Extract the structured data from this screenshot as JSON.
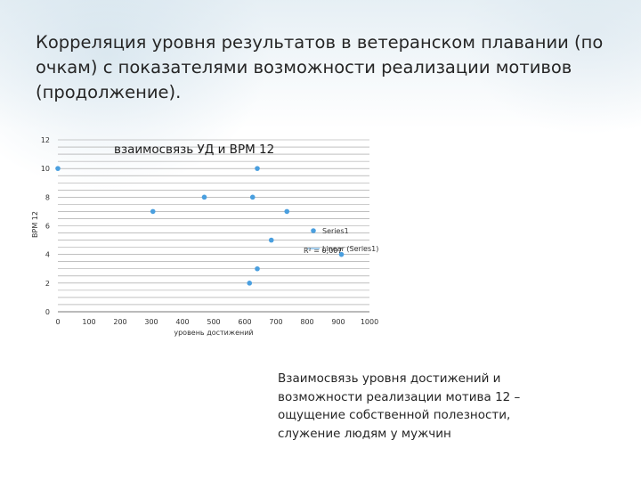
{
  "slide": {
    "title": "Корреляция уровня результатов в ветеранском плавании (по очкам) с показателями возможности реализации мотивов (продолжение).",
    "caption": "Взаимосвязь уровня достижений и возможности реализации мотива 12 – ощущение собственной полезности, служение людям у мужчин"
  },
  "chart_data": {
    "type": "scatter",
    "title": "взаимосвязь УД и ВРМ 12",
    "xlabel": "уровень достижений",
    "ylabel": "ВРМ 12",
    "xlim": [
      0,
      1000
    ],
    "ylim": [
      0,
      12
    ],
    "xticks": [
      0,
      100,
      200,
      300,
      400,
      500,
      600,
      700,
      800,
      900,
      1000
    ],
    "yticks": [
      0,
      2,
      4,
      6,
      8,
      10,
      12
    ],
    "grid": true,
    "legend_position": "right",
    "marker_color": "#4a9fdf",
    "gridline_color": "#9a9a9a",
    "series": [
      {
        "name": "Series1",
        "points": [
          {
            "x": 0,
            "y": 10
          },
          {
            "x": 640,
            "y": 10
          },
          {
            "x": 470,
            "y": 8
          },
          {
            "x": 625,
            "y": 8
          },
          {
            "x": 305,
            "y": 7
          },
          {
            "x": 735,
            "y": 7
          },
          {
            "x": 685,
            "y": 5
          },
          {
            "x": 640,
            "y": 3
          },
          {
            "x": 615,
            "y": 2
          },
          {
            "x": 910,
            "y": 4
          }
        ]
      }
    ],
    "legend": [
      {
        "label": "Series1",
        "kind": "marker"
      },
      {
        "label": "Linear (Series1)",
        "kind": "line"
      }
    ],
    "annotation": "R² = 0,007"
  }
}
